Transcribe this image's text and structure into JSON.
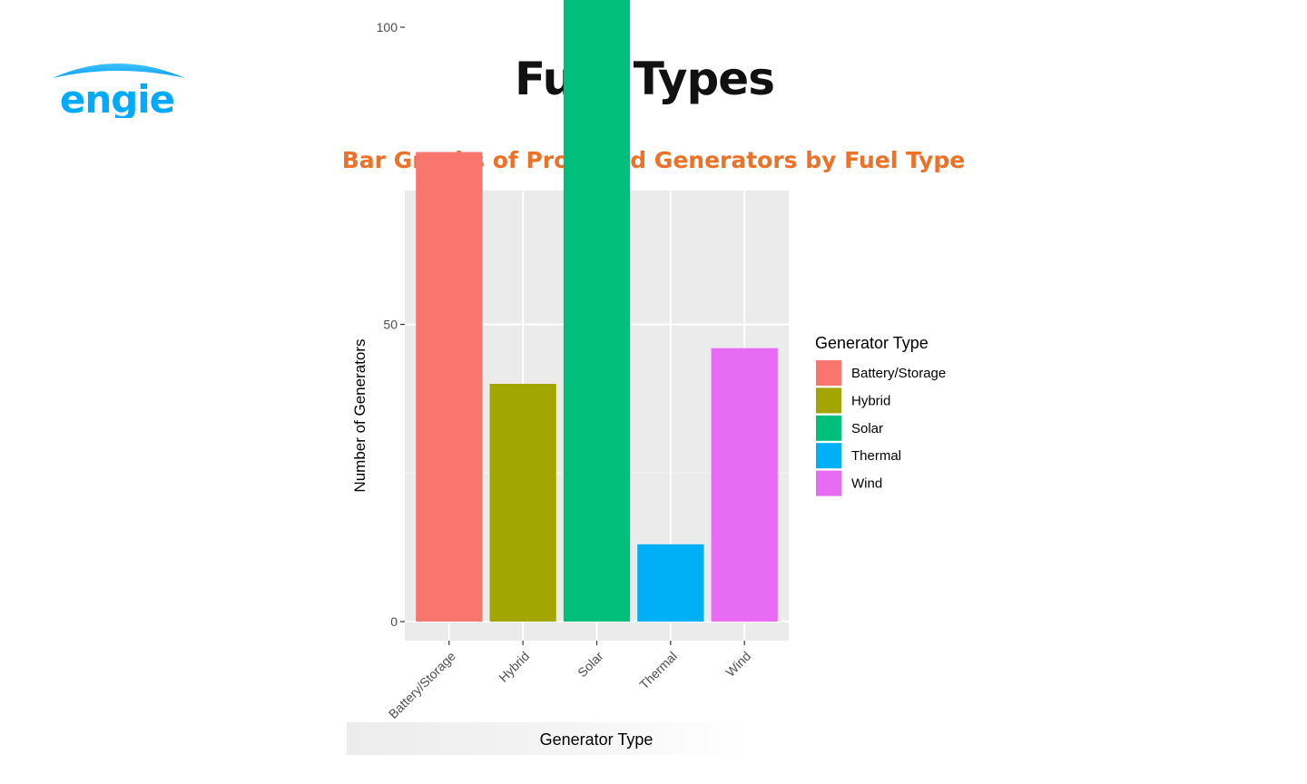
{
  "slide": {
    "title": "Fuel Types",
    "logo_text": "engie",
    "brand_color": "#00aaff"
  },
  "chart_data": {
    "type": "bar",
    "title": "Bar Graphs of Proposed Generators by Fuel Type",
    "categories": [
      "Battery/Storage",
      "Hybrid",
      "Solar",
      "Thermal",
      "Wind"
    ],
    "values": [
      79,
      40,
      138,
      13,
      46
    ],
    "colors": [
      "#f8766d",
      "#a3a500",
      "#00bf7d",
      "#00b0f6",
      "#e76bf3"
    ],
    "xlabel": "Generator Type",
    "ylabel": "Number of Generators",
    "ylim": [
      0,
      145
    ],
    "yticks": [
      0,
      50,
      100
    ],
    "grid": true,
    "legend": {
      "title": "Generator Type",
      "placement": "right"
    },
    "title_color": "#ee7128",
    "panel_background": "#ebebeb"
  }
}
